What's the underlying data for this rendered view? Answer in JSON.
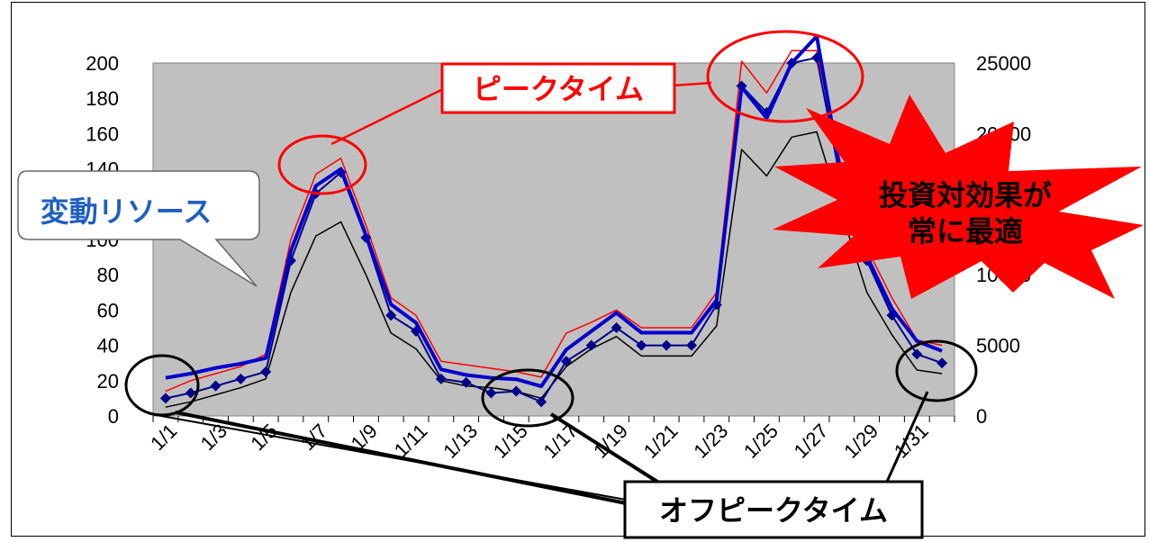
{
  "chart_data": {
    "type": "line",
    "title": "",
    "xlabel": "",
    "ylabel": "",
    "categories": [
      "1/1",
      "1/2",
      "1/3",
      "1/4",
      "1/5",
      "1/6",
      "1/7",
      "1/8",
      "1/9",
      "1/10",
      "1/11",
      "1/12",
      "1/13",
      "1/14",
      "1/15",
      "1/16",
      "1/17",
      "1/18",
      "1/19",
      "1/20",
      "1/21",
      "1/22",
      "1/23",
      "1/24",
      "1/25",
      "1/26",
      "1/27",
      "1/28",
      "1/29",
      "1/30",
      "1/31",
      "2/1"
    ],
    "x_tick_labels": [
      "1/1",
      "1/3",
      "1/5",
      "1/7",
      "1/9",
      "1/11",
      "1/13",
      "1/15",
      "1/17",
      "1/19",
      "1/21",
      "1/23",
      "1/25",
      "1/27",
      "1/29",
      "1/31"
    ],
    "ylim_left": [
      0,
      200
    ],
    "yticks_left": [
      "0",
      "20",
      "40",
      "60",
      "80",
      "100",
      "120",
      "140",
      "160",
      "180",
      "200"
    ],
    "ylim_right": [
      0,
      25000
    ],
    "yticks_right": [
      "0",
      "5000",
      "10000",
      "15000",
      "20000",
      "25000"
    ],
    "grid": false,
    "plot_background": "#c0c0c0",
    "series": [
      {
        "color": "#ff0000",
        "axis": "left",
        "values": [
          14,
          20,
          24,
          28,
          35,
          100,
          137,
          146,
          108,
          67,
          57,
          31,
          29,
          27,
          25,
          22,
          47,
          53,
          60,
          50,
          50,
          50,
          70,
          201,
          183,
          207,
          207,
          140,
          95,
          67,
          43,
          40
        ]
      },
      {
        "color": "#000000",
        "axis": "left",
        "values": [
          5,
          8,
          12,
          16,
          21,
          70,
          102,
          110,
          80,
          47,
          38,
          20,
          17,
          16,
          14,
          10,
          28,
          38,
          45,
          34,
          34,
          34,
          51,
          151,
          136,
          158,
          161,
          115,
          70,
          46,
          26,
          24
        ]
      },
      {
        "color": "#00008b",
        "axis": "left",
        "marker": "diamond",
        "values": [
          10,
          13,
          17,
          21,
          25,
          88,
          126,
          138,
          101,
          57,
          48,
          21,
          19,
          13,
          14,
          8,
          31,
          40,
          50,
          40,
          40,
          40,
          63,
          187,
          172,
          200,
          203,
          130,
          88,
          57,
          35,
          30
        ]
      },
      {
        "color": "#0000cc",
        "axis": "right",
        "values": [
          2700,
          3000,
          3400,
          3700,
          4100,
          11700,
          16300,
          17500,
          12800,
          7900,
          6600,
          3300,
          2900,
          2700,
          2600,
          2100,
          4700,
          6000,
          7300,
          5900,
          5900,
          5900,
          8200,
          23300,
          21100,
          25000,
          26900,
          16700,
          11300,
          7600,
          5300,
          4600
        ]
      }
    ]
  },
  "callouts": {
    "peak_time": "ピークタイム",
    "variable_resources": "変動リソース",
    "roi_line1": "投資対効果が",
    "roi_line2": "常に最適",
    "off_peak_time": "オフピークタイム"
  },
  "colors": {
    "peak_border": "#ff0000",
    "peak_text": "#ff0000",
    "variable_text": "#1f5fbf",
    "burst_fill": "#ff0000",
    "highlight_circle": "#ff0000",
    "offpeak_circle": "#000000"
  }
}
